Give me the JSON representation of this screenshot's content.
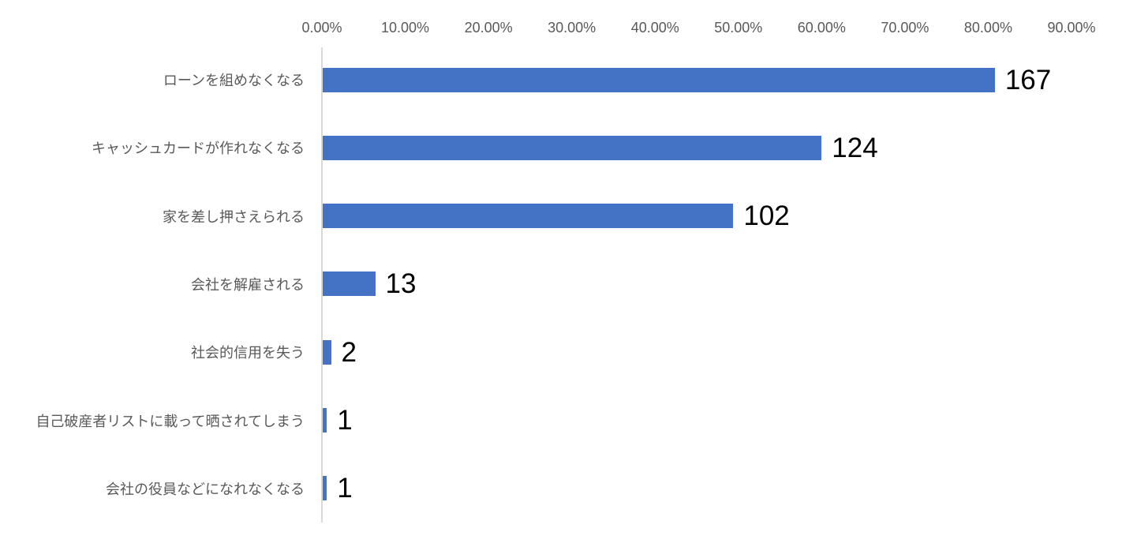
{
  "chart_data": {
    "type": "bar",
    "orientation": "horizontal",
    "title": "",
    "xlabel": "",
    "ylabel": "",
    "grid": false,
    "legend": false,
    "bar_color": "#4472c4",
    "axis_line_color": "#d9d9d9",
    "tick_label_color": "#595959",
    "category_label_color": "#595959",
    "data_label_color": "#000000",
    "x_axis": {
      "position": "top",
      "min_percent": 0,
      "max_percent": 90,
      "ticks": [
        "0.00%",
        "10.00%",
        "20.00%",
        "30.00%",
        "40.00%",
        "50.00%",
        "60.00%",
        "70.00%",
        "80.00%",
        "90.00%"
      ]
    },
    "categories": [
      "ローンを組めなくなる",
      "キャッシュカードが作れなくなる",
      "家を差し押さえられる",
      "会社を解雇される",
      "社会的信用を失う",
      "自己破産者リストに載って晒されてしまう",
      "会社の役員などになれなくなる"
    ],
    "values": [
      167,
      124,
      102,
      13,
      2,
      1,
      1
    ],
    "axis_percent": [
      80.7,
      59.9,
      49.3,
      6.3,
      1.0,
      0.5,
      0.5
    ]
  }
}
